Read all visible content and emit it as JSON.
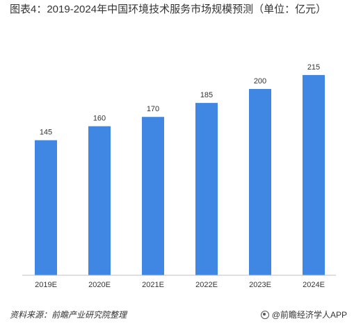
{
  "title": "图表4：2019-2024年中国环境技术服务市场规模预测（单位：亿元）",
  "source": "资料来源：前瞻产业研究院整理",
  "credit": "@前瞻经济学人APP",
  "colors": {
    "bar": "#3F87E3",
    "axis": "#BFBFBF",
    "text": "#333333"
  },
  "chart_data": {
    "type": "bar",
    "categories": [
      "2019E",
      "2020E",
      "2021E",
      "2022E",
      "2023E",
      "2024E"
    ],
    "values": [
      145,
      160,
      170,
      185,
      200,
      215
    ],
    "title": "图表4：2019-2024年中国环境技术服务市场规模预测（单位：亿元）",
    "xlabel": "",
    "ylabel": "",
    "ylim": [
      0,
      215
    ],
    "grid": false,
    "legend": "none",
    "data_labels": true
  }
}
